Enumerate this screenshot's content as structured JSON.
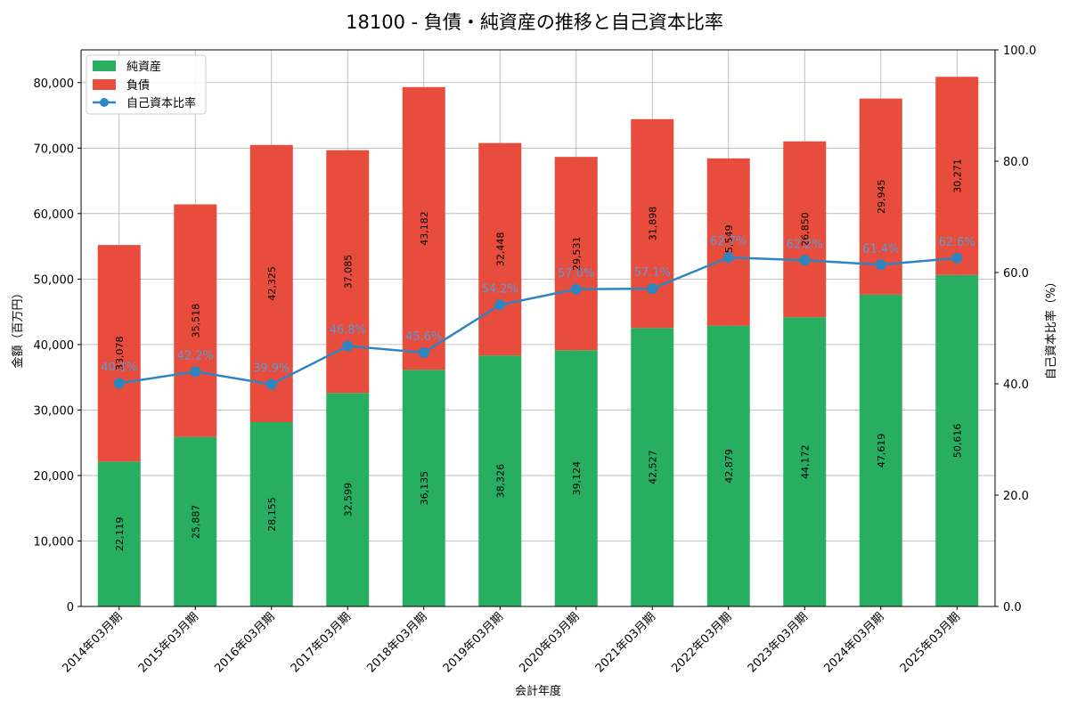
{
  "chart_data": {
    "type": "bar",
    "stacked": true,
    "title": "18100 - 負債・純資産の推移と自己資本比率",
    "xlabel": "会計年度",
    "ylabel": "金額（百万円）",
    "y2label": "自己資本比率（%）",
    "ylim": [
      0,
      85000
    ],
    "y2lim": [
      0,
      100
    ],
    "yticks": [
      0,
      10000,
      20000,
      30000,
      40000,
      50000,
      60000,
      70000,
      80000
    ],
    "yticklabels": [
      "0",
      "10,000",
      "20,000",
      "30,000",
      "40,000",
      "50,000",
      "60,000",
      "70,000",
      "80,000"
    ],
    "y2ticks": [
      0,
      20,
      40,
      60,
      80,
      100
    ],
    "y2ticklabels": [
      "0.0",
      "20.0",
      "40.0",
      "60.0",
      "80.0",
      "100.0"
    ],
    "grid": true,
    "legend_position": "top-left",
    "categories": [
      "2014年03月期",
      "2015年03月期",
      "2016年03月期",
      "2017年03月期",
      "2018年03月期",
      "2019年03月期",
      "2020年03月期",
      "2021年03月期",
      "2022年03月期",
      "2023年03月期",
      "2024年03月期",
      "2025年03月期"
    ],
    "series": [
      {
        "name": "純資産",
        "kind": "bar",
        "color": "#27ae60",
        "values": [
          22119,
          25887,
          28155,
          32599,
          36135,
          38326,
          39124,
          42527,
          42879,
          44172,
          47619,
          50616
        ],
        "labels": [
          "22,119",
          "25,887",
          "28,155",
          "32,599",
          "36,135",
          "38,326",
          "39,124",
          "42,527",
          "42,879",
          "44,172",
          "47,619",
          "50,616"
        ]
      },
      {
        "name": "負債",
        "kind": "bar",
        "color": "#e74c3c",
        "values": [
          33078,
          35518,
          42325,
          37085,
          43182,
          32448,
          29531,
          31898,
          25549,
          26850,
          29945,
          30271
        ],
        "labels": [
          "33,078",
          "35,518",
          "42,325",
          "37,085",
          "43,182",
          "32,448",
          "29,531",
          "31,898",
          "25,549",
          "26,850",
          "29,945",
          "30,271"
        ]
      },
      {
        "name": "自己資本比率",
        "kind": "line",
        "axis": "right",
        "color": "#2e86c1",
        "values": [
          40.1,
          42.2,
          39.9,
          46.8,
          45.6,
          54.2,
          57.0,
          57.1,
          62.7,
          62.2,
          61.4,
          62.6
        ],
        "labels": [
          "40.1%",
          "42.2%",
          "39.9%",
          "46.8%",
          "45.6%",
          "54.2%",
          "57.0%",
          "57.1%",
          "62.7%",
          "62.2%",
          "61.4%",
          "62.6%"
        ]
      }
    ]
  }
}
